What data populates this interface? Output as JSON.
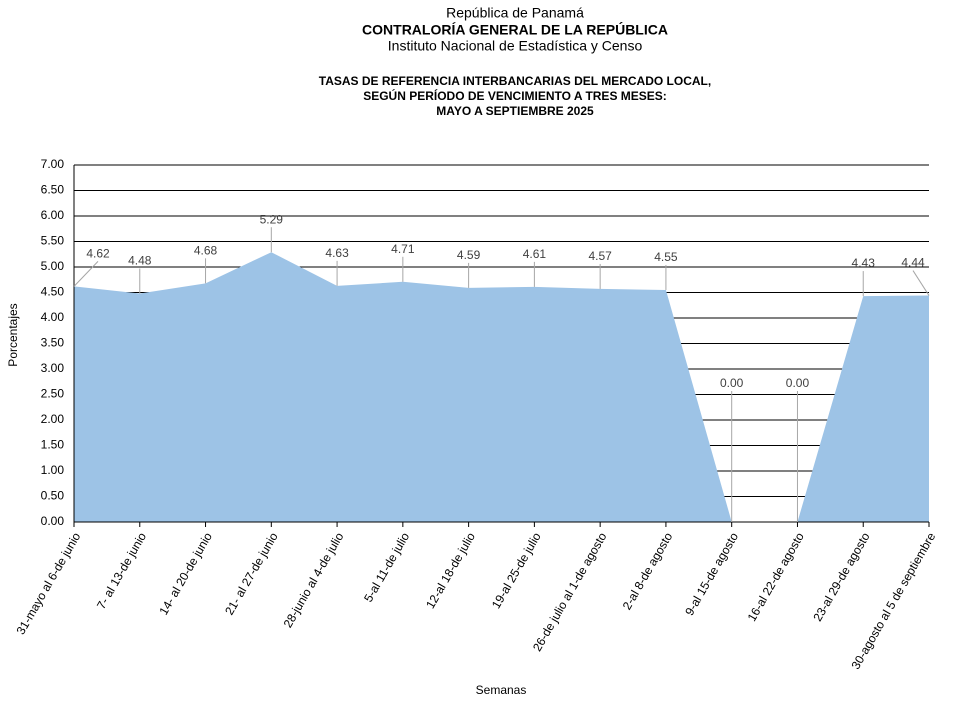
{
  "chart_data": {
    "type": "area",
    "supertitle": [
      "República de Panamá",
      "CONTRALORÍA GENERAL DE LA REPÚBLICA",
      "Instituto Nacional de Estadística y Censo"
    ],
    "title": [
      "TASAS DE REFERENCIA  INTERBANCARIAS DEL MERCADO LOCAL,",
      "SEGÚN PERÍODO DE VENCIMIENTO A TRES MESES:",
      "MAYO A SEPTIEMBRE 2025"
    ],
    "xlabel": "Semanas",
    "ylabel": "Porcentajes",
    "categories": [
      "31-mayo al 6-de junio",
      "7- al 13-de junio",
      "14- al 20-de junio",
      "21- al 27-de junio",
      "28-junio al 4-de julio",
      "5-al 11-de julio",
      "12-al 18-de julio",
      "19-al 25-de julio",
      "26-de julio al 1-de agosto",
      "2-al 8-de agosto",
      "9-al 15-de agosto",
      "16-al 22-de agosto",
      "23-al 29-de agosto",
      "30-agosto al 5 de septiembre"
    ],
    "values": [
      4.62,
      4.48,
      4.68,
      5.29,
      4.63,
      4.71,
      4.59,
      4.61,
      4.57,
      4.55,
      0,
      0,
      4.43,
      4.44
    ],
    "value_labels": [
      "4.62",
      "4.48",
      "4.68",
      "5.29",
      "4.63",
      "4.71",
      "4.59",
      "4.61",
      "4.57",
      "4.55",
      "0.00",
      "0.00",
      "4.43",
      "4.44"
    ],
    "color": "#9dc3e6",
    "ylim": [
      0,
      7
    ],
    "yticks": [
      {
        "value": 0,
        "label": "0.00"
      },
      {
        "value": 0.5,
        "label": "0.50"
      },
      {
        "value": 1,
        "label": "1.00"
      },
      {
        "value": 1.5,
        "label": "1.50"
      },
      {
        "value": 2,
        "label": "2.00"
      },
      {
        "value": 2.5,
        "label": "2.50"
      },
      {
        "value": 3,
        "label": "3.00"
      },
      {
        "value": 3.5,
        "label": "3.50"
      },
      {
        "value": 4,
        "label": "4.00"
      },
      {
        "value": 4.5,
        "label": "4.50"
      },
      {
        "value": 5,
        "label": "5.00"
      },
      {
        "value": 5.5,
        "label": "5.50"
      },
      {
        "value": 6,
        "label": "6.00"
      },
      {
        "value": 6.5,
        "label": "6.50"
      },
      {
        "value": 7,
        "label": "7.00"
      }
    ],
    "grid": true
  }
}
